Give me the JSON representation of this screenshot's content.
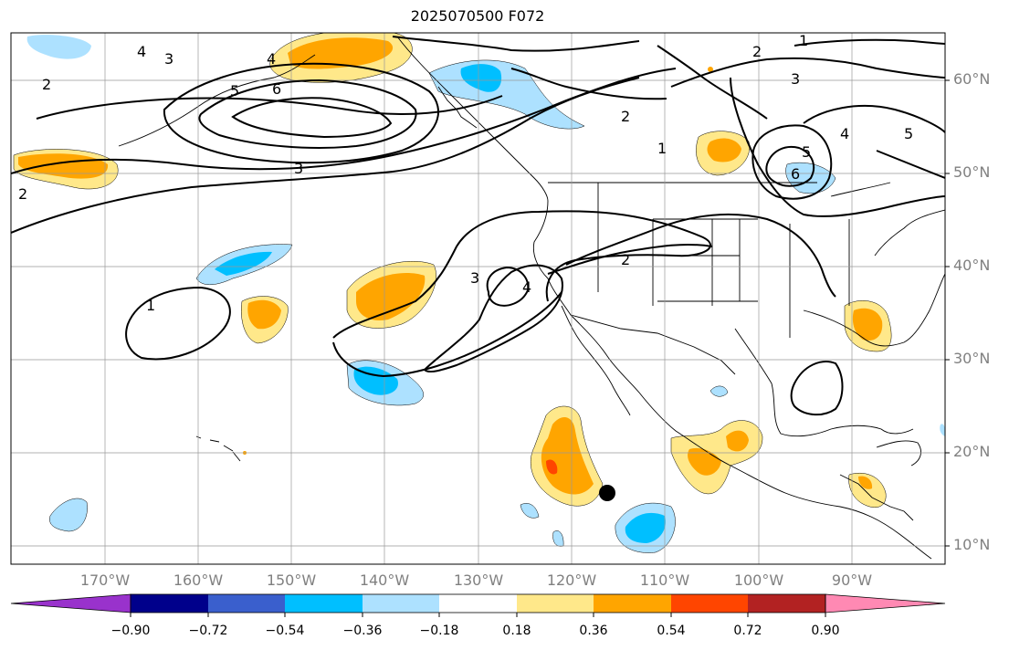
{
  "title": "2025070500 F072",
  "map": {
    "projection": "cylindrical",
    "lon_range": [
      180,
      80
    ],
    "lat_range": [
      8,
      65
    ],
    "latitude_labels": [
      "60°N",
      "50°N",
      "40°N",
      "30°N",
      "20°N",
      "10°N"
    ],
    "longitude_labels": [
      "170°W",
      "160°W",
      "150°W",
      "140°W",
      "130°W",
      "120°W",
      "110°W",
      "100°W",
      "90°W"
    ],
    "grid": true,
    "contour_labels": [
      "1",
      "2",
      "3",
      "4",
      "5",
      "6"
    ],
    "marker": {
      "type": "storm-position-dot",
      "lon": -116,
      "lat": 15.7,
      "color": "#000000"
    }
  },
  "colorbar": {
    "orientation": "horizontal",
    "extend": "both",
    "tick_labels": [
      "−0.90",
      "−0.72",
      "−0.54",
      "−0.36",
      "−0.18",
      "0.18",
      "0.36",
      "0.54",
      "0.72",
      "0.90"
    ],
    "colors": [
      "#9932CC",
      "#00008B",
      "#3A5FCD",
      "#00BFFF",
      "#ADE1FF",
      "#FFFFFF",
      "#FFE88A",
      "#FFA500",
      "#FF4500",
      "#B22222",
      "#FF89B3"
    ]
  }
}
